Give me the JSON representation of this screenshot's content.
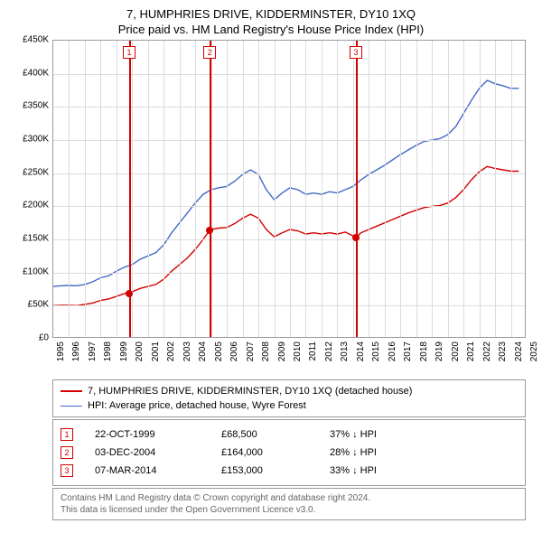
{
  "title": {
    "line1": "7, HUMPHRIES DRIVE, KIDDERMINSTER, DY10 1XQ",
    "line2": "Price paid vs. HM Land Registry's House Price Index (HPI)"
  },
  "chart": {
    "type": "line",
    "background_color": "#ffffff",
    "grid_color": "#dcdcdc",
    "border_color": "#999999",
    "xlim": [
      1995,
      2025
    ],
    "ylim": [
      0,
      450000
    ],
    "ytick_step": 50000,
    "yticks": [
      {
        "v": 0,
        "label": "£0"
      },
      {
        "v": 50000,
        "label": "£50K"
      },
      {
        "v": 100000,
        "label": "£100K"
      },
      {
        "v": 150000,
        "label": "£150K"
      },
      {
        "v": 200000,
        "label": "£200K"
      },
      {
        "v": 250000,
        "label": "£250K"
      },
      {
        "v": 300000,
        "label": "£300K"
      },
      {
        "v": 350000,
        "label": "£350K"
      },
      {
        "v": 400000,
        "label": "£400K"
      },
      {
        "v": 450000,
        "label": "£450K"
      }
    ],
    "xticks": [
      1995,
      1996,
      1997,
      1998,
      1999,
      2000,
      2001,
      2002,
      2003,
      2004,
      2005,
      2006,
      2007,
      2008,
      2009,
      2010,
      2011,
      2012,
      2013,
      2014,
      2015,
      2016,
      2017,
      2018,
      2019,
      2020,
      2021,
      2022,
      2023,
      2024,
      2025
    ],
    "series": [
      {
        "name": "hpi",
        "color": "#4169c8",
        "line_width": 1.4,
        "points": [
          [
            1995,
            79000
          ],
          [
            1995.5,
            80000
          ],
          [
            1996,
            80500
          ],
          [
            1996.5,
            80000
          ],
          [
            1997,
            82000
          ],
          [
            1997.5,
            86000
          ],
          [
            1998,
            92000
          ],
          [
            1998.5,
            95000
          ],
          [
            1999,
            102000
          ],
          [
            1999.5,
            108000
          ],
          [
            2000,
            112000
          ],
          [
            2000.5,
            120000
          ],
          [
            2001,
            125000
          ],
          [
            2001.5,
            130000
          ],
          [
            2002,
            142000
          ],
          [
            2002.5,
            160000
          ],
          [
            2003,
            175000
          ],
          [
            2003.5,
            190000
          ],
          [
            2004,
            205000
          ],
          [
            2004.5,
            218000
          ],
          [
            2005,
            225000
          ],
          [
            2005.5,
            228000
          ],
          [
            2006,
            230000
          ],
          [
            2006.5,
            238000
          ],
          [
            2007,
            248000
          ],
          [
            2007.5,
            255000
          ],
          [
            2008,
            248000
          ],
          [
            2008.5,
            225000
          ],
          [
            2009,
            210000
          ],
          [
            2009.5,
            220000
          ],
          [
            2010,
            228000
          ],
          [
            2010.5,
            225000
          ],
          [
            2011,
            218000
          ],
          [
            2011.5,
            220000
          ],
          [
            2012,
            218000
          ],
          [
            2012.5,
            222000
          ],
          [
            2013,
            220000
          ],
          [
            2013.5,
            225000
          ],
          [
            2014,
            230000
          ],
          [
            2014.5,
            240000
          ],
          [
            2015,
            248000
          ],
          [
            2015.5,
            255000
          ],
          [
            2016,
            262000
          ],
          [
            2016.5,
            270000
          ],
          [
            2017,
            278000
          ],
          [
            2017.5,
            285000
          ],
          [
            2018,
            292000
          ],
          [
            2018.5,
            298000
          ],
          [
            2019,
            300000
          ],
          [
            2019.5,
            302000
          ],
          [
            2020,
            308000
          ],
          [
            2020.5,
            320000
          ],
          [
            2021,
            340000
          ],
          [
            2021.5,
            360000
          ],
          [
            2022,
            378000
          ],
          [
            2022.5,
            390000
          ],
          [
            2023,
            385000
          ],
          [
            2023.5,
            382000
          ],
          [
            2024,
            378000
          ],
          [
            2024.5,
            378000
          ]
        ]
      },
      {
        "name": "property",
        "color": "#d40000",
        "line_width": 1.4,
        "points": [
          [
            1995,
            50000
          ],
          [
            1995.5,
            50500
          ],
          [
            1996,
            50500
          ],
          [
            1996.5,
            50000
          ],
          [
            1997,
            52000
          ],
          [
            1997.5,
            54000
          ],
          [
            1998,
            58000
          ],
          [
            1998.5,
            60000
          ],
          [
            1999,
            64000
          ],
          [
            1999.5,
            68000
          ],
          [
            2000,
            71000
          ],
          [
            2000.5,
            76000
          ],
          [
            2001,
            79000
          ],
          [
            2001.5,
            82000
          ],
          [
            2002,
            90000
          ],
          [
            2002.5,
            102000
          ],
          [
            2003,
            112000
          ],
          [
            2003.5,
            122000
          ],
          [
            2004,
            135000
          ],
          [
            2004.5,
            150000
          ],
          [
            2004.92,
            164000
          ],
          [
            2005,
            165000
          ],
          [
            2005.5,
            167000
          ],
          [
            2006,
            168000
          ],
          [
            2006.5,
            174000
          ],
          [
            2007,
            182000
          ],
          [
            2007.5,
            188000
          ],
          [
            2008,
            182000
          ],
          [
            2008.5,
            165000
          ],
          [
            2009,
            154000
          ],
          [
            2009.5,
            160000
          ],
          [
            2010,
            165000
          ],
          [
            2010.5,
            163000
          ],
          [
            2011,
            158000
          ],
          [
            2011.5,
            160000
          ],
          [
            2012,
            158000
          ],
          [
            2012.5,
            160000
          ],
          [
            2013,
            158000
          ],
          [
            2013.5,
            161000
          ],
          [
            2014.18,
            153000
          ],
          [
            2014.5,
            160000
          ],
          [
            2015,
            165000
          ],
          [
            2015.5,
            170000
          ],
          [
            2016,
            175000
          ],
          [
            2016.5,
            180000
          ],
          [
            2017,
            185000
          ],
          [
            2017.5,
            190000
          ],
          [
            2018,
            194000
          ],
          [
            2018.5,
            198000
          ],
          [
            2019,
            200000
          ],
          [
            2019.5,
            201000
          ],
          [
            2020,
            205000
          ],
          [
            2020.5,
            213000
          ],
          [
            2021,
            225000
          ],
          [
            2021.5,
            240000
          ],
          [
            2022,
            252000
          ],
          [
            2022.5,
            260000
          ],
          [
            2023,
            257000
          ],
          [
            2023.5,
            255000
          ],
          [
            2024,
            253000
          ],
          [
            2024.5,
            253000
          ]
        ]
      }
    ],
    "markers": [
      {
        "n": "1",
        "x": 1999.81,
        "y": 68500,
        "dot_color": "#d40000"
      },
      {
        "n": "2",
        "x": 2004.92,
        "y": 164000,
        "dot_color": "#d40000"
      },
      {
        "n": "3",
        "x": 2014.18,
        "y": 153000,
        "dot_color": "#d40000"
      }
    ],
    "label_fontsize": 10,
    "title_fontsize": 13
  },
  "legend": {
    "items": [
      {
        "label": "7, HUMPHRIES DRIVE, KIDDERMINSTER, DY10 1XQ (detached house)",
        "color": "#d40000",
        "width": 2
      },
      {
        "label": "HPI: Average price, detached house, Wyre Forest",
        "color": "#4169c8",
        "width": 1.5
      }
    ]
  },
  "sales": [
    {
      "n": "1",
      "date": "22-OCT-1999",
      "price": "£68,500",
      "diff": "37% ↓ HPI"
    },
    {
      "n": "2",
      "date": "03-DEC-2004",
      "price": "£164,000",
      "diff": "28% ↓ HPI"
    },
    {
      "n": "3",
      "date": "07-MAR-2014",
      "price": "£153,000",
      "diff": "33% ↓ HPI"
    }
  ],
  "footer": {
    "line1": "Contains HM Land Registry data © Crown copyright and database right 2024.",
    "line2": "This data is licensed under the Open Government Licence v3.0."
  }
}
